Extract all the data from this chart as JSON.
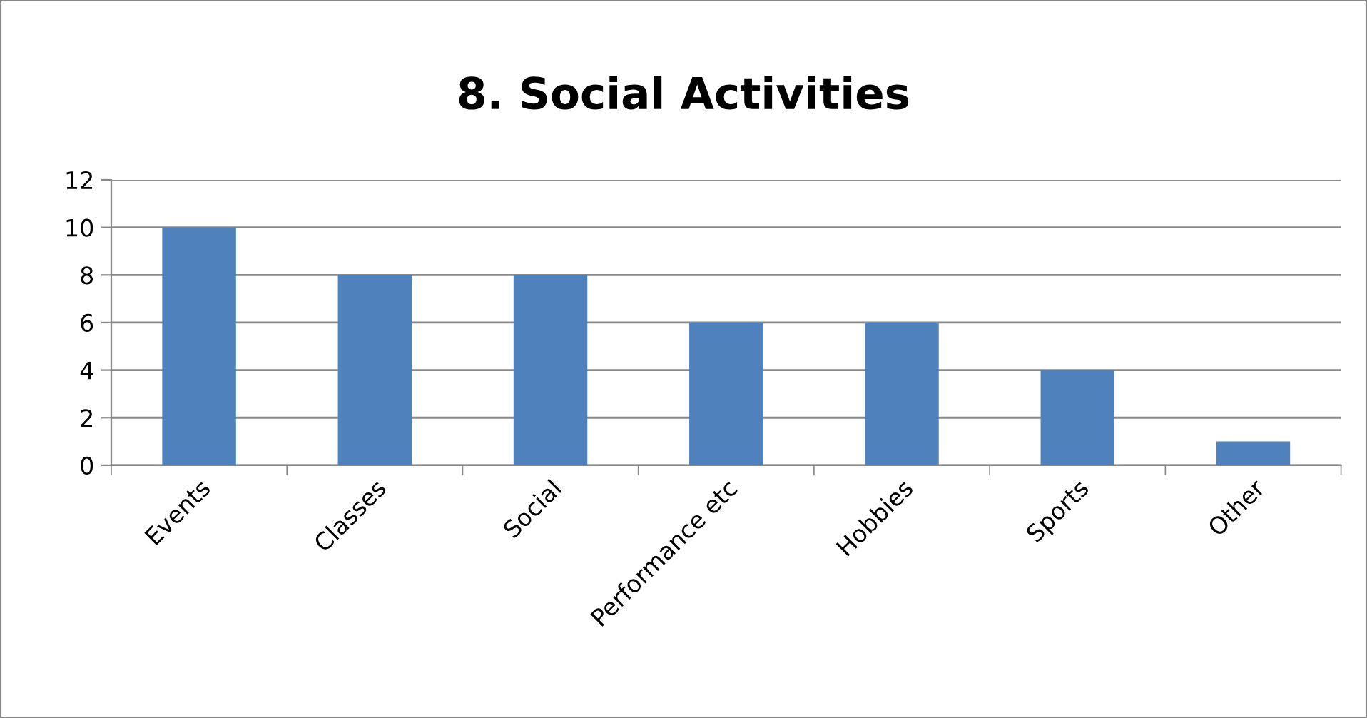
{
  "chart_data": {
    "type": "bar",
    "title": "8. Social Activities",
    "categories": [
      "Events",
      "Classes",
      "Social",
      "Performance etc",
      "Hobbies",
      "Sports",
      "Other"
    ],
    "values": [
      10,
      8,
      8,
      6,
      6,
      4,
      1
    ],
    "color": "#4f81bd",
    "ylim": [
      0,
      12
    ],
    "yticks": [
      0,
      2,
      4,
      6,
      8,
      10,
      12
    ],
    "grid": "y",
    "legend": false
  }
}
